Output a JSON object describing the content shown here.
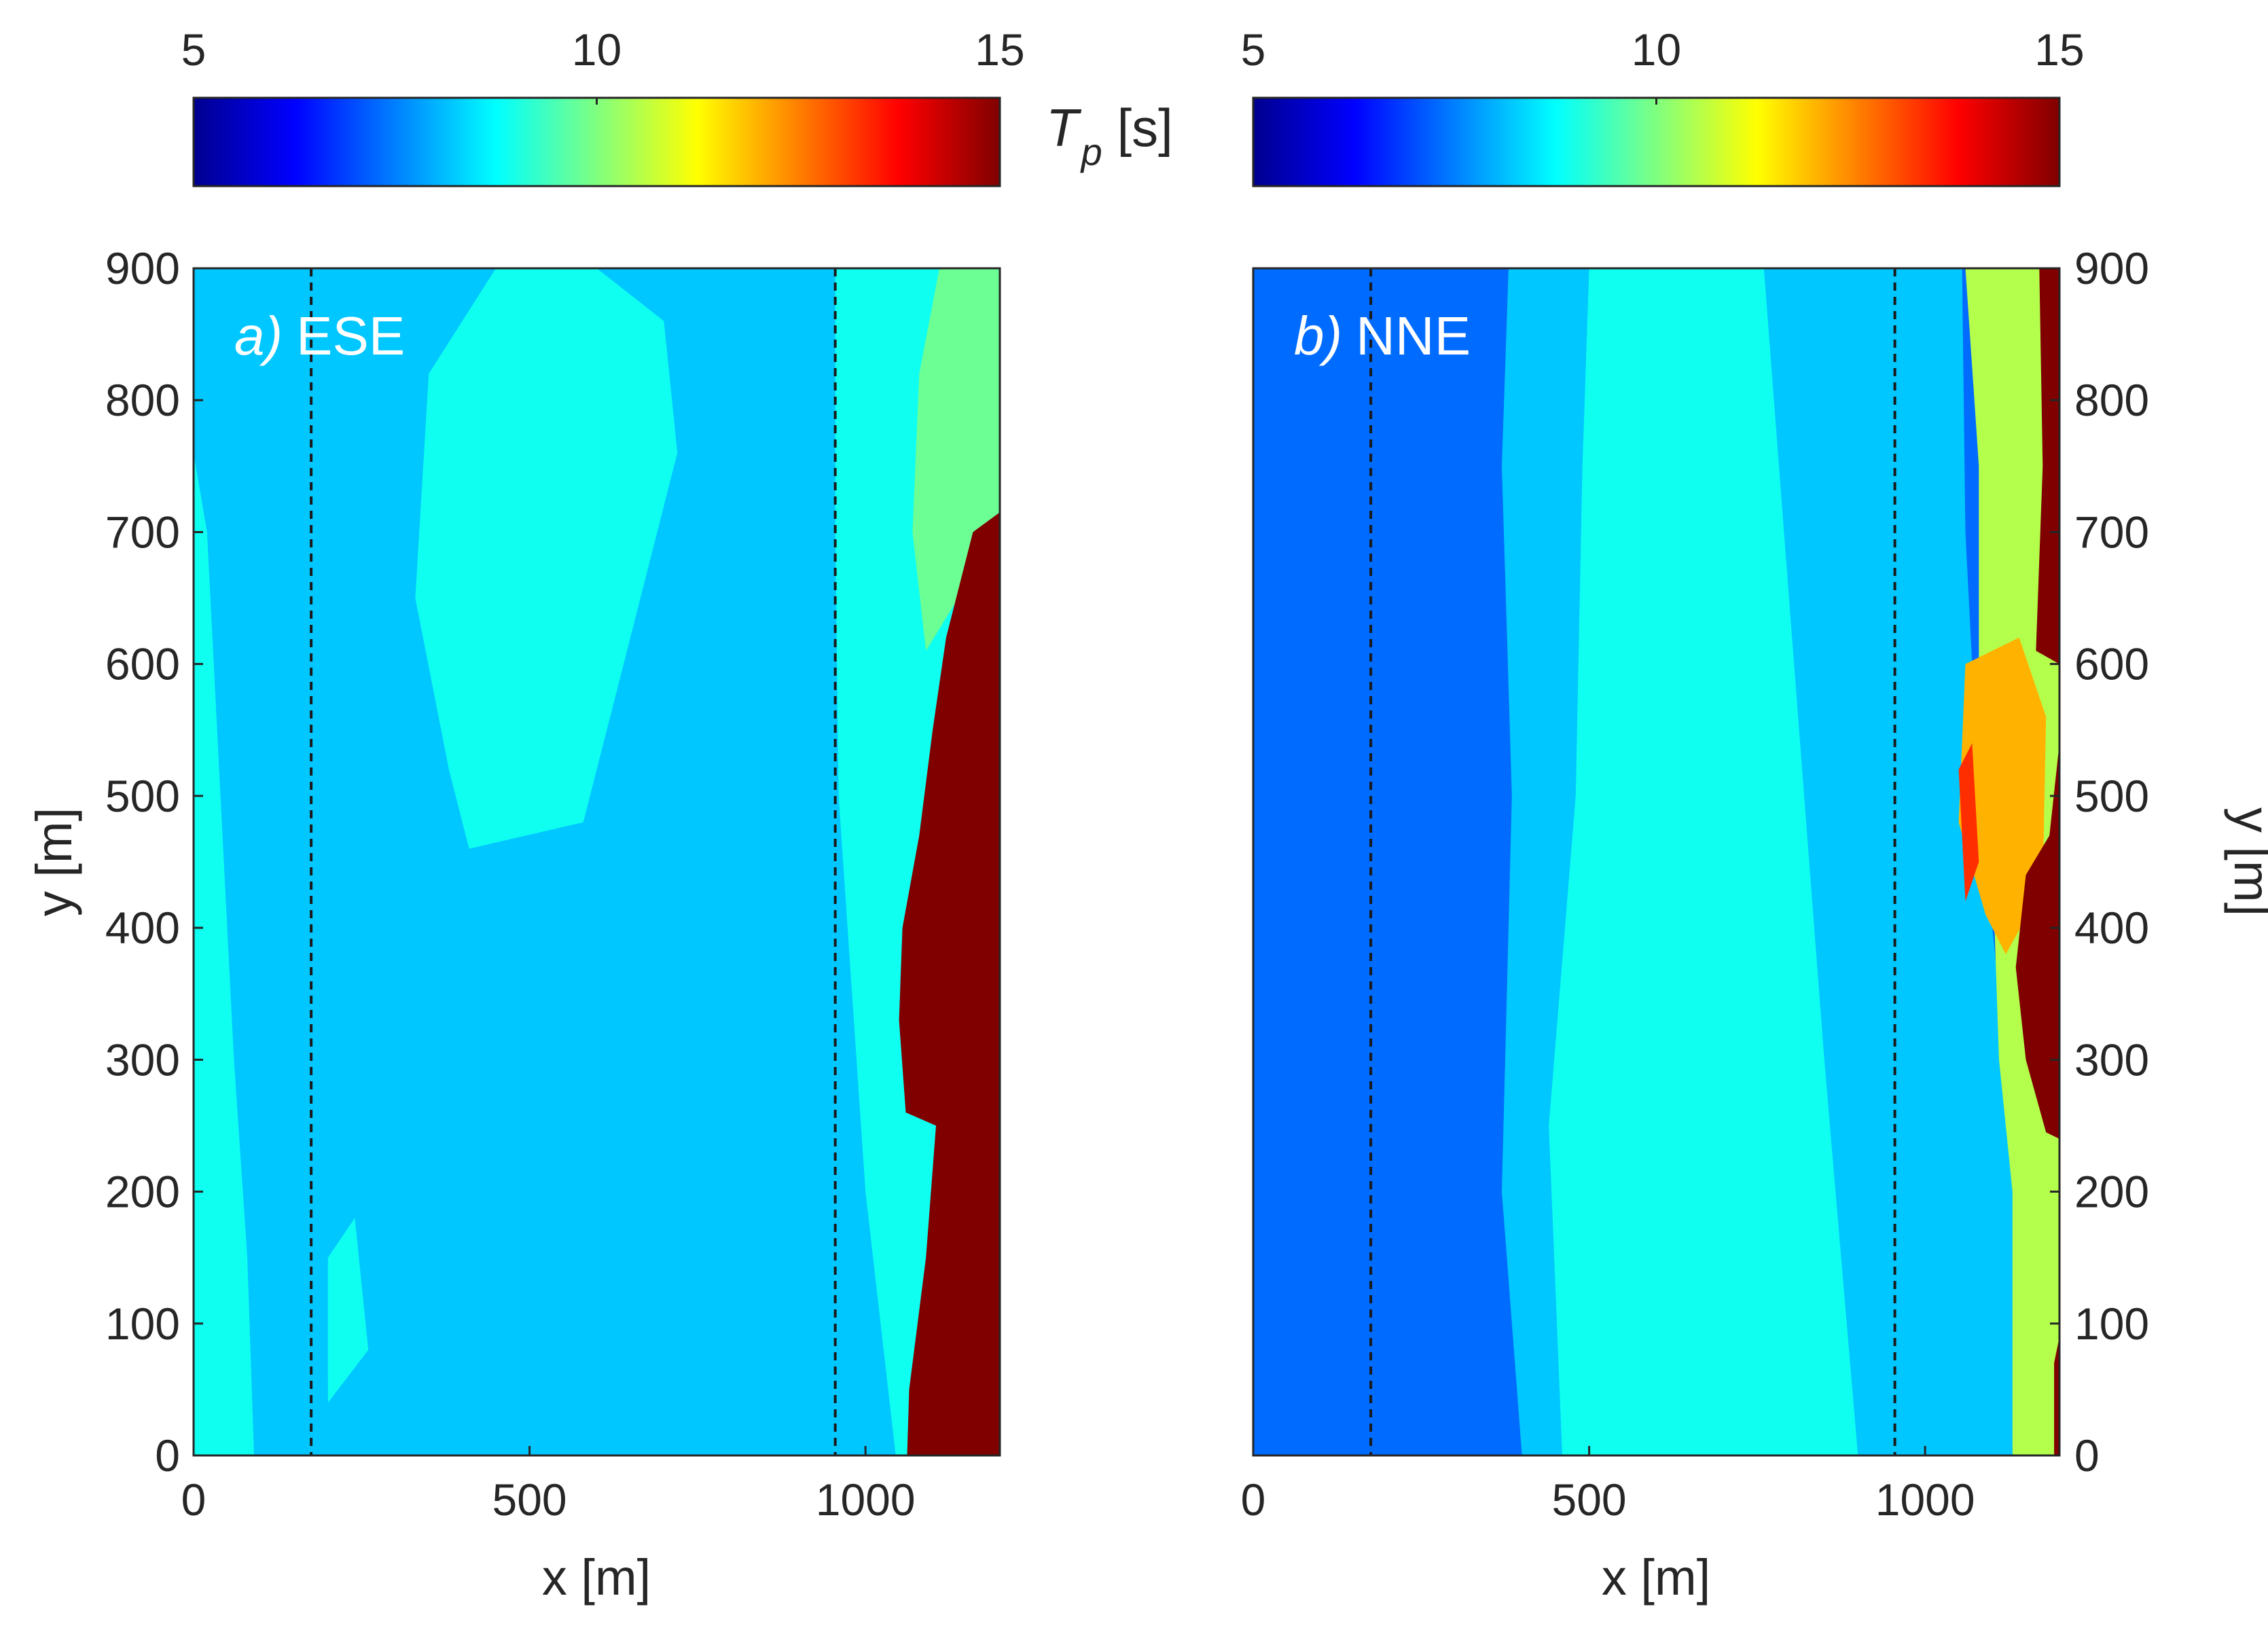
{
  "chart_data": [
    {
      "type": "heatmap",
      "panel": "a",
      "title_italic": "a)",
      "title": "ESE",
      "xlabel": "x [m]",
      "ylabel": "y [m]",
      "ylabel_side": "left",
      "xlim": [
        0,
        1200
      ],
      "ylim": [
        0,
        900
      ],
      "xticks": [
        0,
        500,
        1000
      ],
      "yticks": [
        0,
        100,
        200,
        300,
        400,
        500,
        600,
        700,
        800,
        900
      ],
      "dashed_lines_x": [
        175,
        955
      ],
      "background_tp": 8.2,
      "regions": [
        {
          "name": "nearshore-west-band",
          "tp": 8.9,
          "points": [
            [
              0,
              0
            ],
            [
              90,
              0
            ],
            [
              80,
              150
            ],
            [
              60,
              300
            ],
            [
              40,
              500
            ],
            [
              20,
              700
            ],
            [
              0,
              760
            ]
          ]
        },
        {
          "name": "mid-basin-patch",
          "tp": 8.9,
          "points": [
            [
              410,
              460
            ],
            [
              580,
              480
            ],
            [
              640,
              600
            ],
            [
              720,
              760
            ],
            [
              700,
              860
            ],
            [
              600,
              900
            ],
            [
              450,
              900
            ],
            [
              350,
              820
            ],
            [
              330,
              650
            ],
            [
              380,
              520
            ]
          ]
        },
        {
          "name": "scattered-lighter-cells",
          "tp": 8.9,
          "points": [
            [
              200,
              40
            ],
            [
              260,
              80
            ],
            [
              240,
              180
            ],
            [
              200,
              150
            ]
          ]
        },
        {
          "name": "east-transition-band",
          "tp": 8.9,
          "points": [
            [
              955,
              900
            ],
            [
              1200,
              900
            ],
            [
              1200,
              0
            ],
            [
              1045,
              0
            ],
            [
              1000,
              200
            ],
            [
              960,
              500
            ],
            [
              955,
              700
            ]
          ]
        },
        {
          "name": "east-green-band",
          "tp": 9.8,
          "points": [
            [
              1110,
              900
            ],
            [
              1200,
              900
            ],
            [
              1200,
              710
            ],
            [
              1150,
              660
            ],
            [
              1090,
              610
            ],
            [
              1070,
              700
            ],
            [
              1080,
              820
            ]
          ]
        },
        {
          "name": "long-period-zone",
          "tp": 15.0,
          "points": [
            [
              1200,
              715
            ],
            [
              1200,
              0
            ],
            [
              1062,
              0
            ],
            [
              1065,
              50
            ],
            [
              1090,
              150
            ],
            [
              1105,
              250
            ],
            [
              1060,
              260
            ],
            [
              1050,
              330
            ],
            [
              1055,
              400
            ],
            [
              1080,
              470
            ],
            [
              1100,
              550
            ],
            [
              1120,
              620
            ],
            [
              1160,
              700
            ]
          ]
        }
      ]
    },
    {
      "type": "heatmap",
      "panel": "b",
      "title_italic": "b)",
      "title": "NNE",
      "xlabel": "x [m]",
      "ylabel": "y [m]",
      "ylabel_side": "right",
      "xlim": [
        0,
        1200
      ],
      "ylim": [
        0,
        900
      ],
      "xticks": [
        0,
        500,
        1000
      ],
      "yticks": [
        0,
        100,
        200,
        300,
        400,
        500,
        600,
        700,
        800,
        900
      ],
      "dashed_lines_x": [
        175,
        955
      ],
      "background_tp": 7.3,
      "regions": [
        {
          "name": "mid-band",
          "tp": 8.2,
          "points": [
            [
              380,
              900
            ],
            [
              1055,
              900
            ],
            [
              1060,
              700
            ],
            [
              1080,
              500
            ],
            [
              1110,
              350
            ],
            [
              1130,
              200
            ],
            [
              1130,
              0
            ],
            [
              400,
              0
            ],
            [
              370,
              200
            ],
            [
              385,
              500
            ],
            [
              370,
              750
            ]
          ]
        },
        {
          "name": "inner-light-band",
          "tp": 8.9,
          "points": [
            [
              500,
              900
            ],
            [
              760,
              900
            ],
            [
              790,
              700
            ],
            [
              820,
              500
            ],
            [
              850,
              300
            ],
            [
              900,
              0
            ],
            [
              460,
              0
            ],
            [
              440,
              250
            ],
            [
              480,
              500
            ],
            [
              490,
              750
            ]
          ]
        },
        {
          "name": "east-green-band",
          "tp": 10.5,
          "points": [
            [
              1060,
              900
            ],
            [
              1200,
              900
            ],
            [
              1200,
              0
            ],
            [
              1130,
              0
            ],
            [
              1130,
              200
            ],
            [
              1110,
              300
            ],
            [
              1100,
              450
            ],
            [
              1080,
              600
            ],
            [
              1080,
              750
            ]
          ]
        },
        {
          "name": "yellow-patch",
          "tp": 12.0,
          "points": [
            [
              1060,
              600
            ],
            [
              1140,
              620
            ],
            [
              1180,
              560
            ],
            [
              1175,
              430
            ],
            [
              1120,
              380
            ],
            [
              1090,
              410
            ],
            [
              1050,
              480
            ]
          ]
        },
        {
          "name": "orange-fringe",
          "tp": 13.3,
          "points": [
            [
              1050,
              520
            ],
            [
              1070,
              540
            ],
            [
              1080,
              450
            ],
            [
              1060,
              420
            ]
          ]
        },
        {
          "name": "red-strip-top",
          "tp": 15.0,
          "points": [
            [
              1170,
              900
            ],
            [
              1200,
              900
            ],
            [
              1200,
              600
            ],
            [
              1165,
              610
            ],
            [
              1175,
              750
            ]
          ]
        },
        {
          "name": "red-strip-mid",
          "tp": 15.0,
          "points": [
            [
              1200,
              540
            ],
            [
              1200,
              240
            ],
            [
              1180,
              245
            ],
            [
              1150,
              300
            ],
            [
              1135,
              370
            ],
            [
              1150,
              440
            ],
            [
              1185,
              470
            ]
          ]
        },
        {
          "name": "red-strip-bottom",
          "tp": 15.0,
          "points": [
            [
              1192,
              0
            ],
            [
              1200,
              0
            ],
            [
              1200,
              90
            ],
            [
              1192,
              70
            ]
          ]
        }
      ]
    }
  ],
  "colorbar": {
    "label_main": "T",
    "label_sub": "p",
    "label_unit": " [s]",
    "min": 5,
    "max": 15,
    "ticks": [
      5,
      10,
      15
    ],
    "tick_labels": [
      "5",
      "10",
      "15"
    ]
  }
}
